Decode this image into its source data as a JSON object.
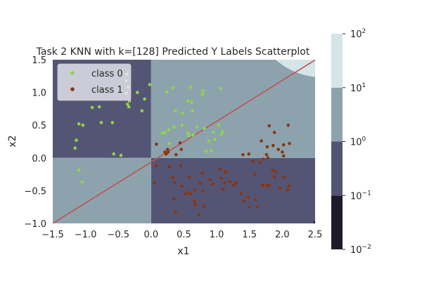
{
  "chart_data": {
    "type": "scatter",
    "title": "Task 2 KNN with k=[128] Predicted Y Labels Scatterplot",
    "xlabel": "x1",
    "ylabel": "x2",
    "xlim": [
      -1.5,
      2.5
    ],
    "ylim": [
      -1.0,
      1.5
    ],
    "xticks": [
      "−1.5",
      "−1.0",
      "−0.5",
      "0.0",
      "0.5",
      "1.0",
      "1.5",
      "2.0",
      "2.5"
    ],
    "xtick_values": [
      -1.5,
      -1.0,
      -0.5,
      0.0,
      0.5,
      1.0,
      1.5,
      2.0,
      2.5
    ],
    "yticks": [
      "−1.0",
      "−0.5",
      "0.0",
      "0.5",
      "1.0",
      "1.5"
    ],
    "ytick_values": [
      -1.0,
      -0.5,
      0.0,
      0.5,
      1.0,
      1.5
    ],
    "grid": false,
    "legend_position": "top-left",
    "background_regions": [
      {
        "x": [
          -1.5,
          0.0
        ],
        "y": [
          0.0,
          1.5
        ],
        "level": "1e-1 to 1e0",
        "color": "#545574"
      },
      {
        "x": [
          0.0,
          2.5
        ],
        "y": [
          -1.0,
          0.0
        ],
        "level": "1e-1 to 1e0",
        "color": "#545574"
      },
      {
        "x": [
          -1.5,
          0.0
        ],
        "y": [
          -1.0,
          0.0
        ],
        "level": "1e0 to 1e1",
        "color": "#8ca3ad"
      },
      {
        "x": [
          0.0,
          2.5
        ],
        "y": [
          0.0,
          1.5
        ],
        "level": "1e0 to 1e1",
        "color": "#8ca3ad"
      },
      {
        "corner": "top-right",
        "level": "1e1 to 1e2",
        "color": "#d3e5e6"
      },
      {
        "corner": "bottom-right",
        "level": "1e-2 to 1e-1",
        "color": "#1e1c2a"
      }
    ],
    "decision_line": {
      "x": [
        -1.5,
        2.5
      ],
      "y": [
        -1.0,
        1.495
      ],
      "color": "#c44e52"
    },
    "colorbar": {
      "scale": "log",
      "levels": [
        {
          "from": "1e-2",
          "to": "1e-1",
          "color": "#1e1c2a"
        },
        {
          "from": "1e-1",
          "to": "1e0",
          "color": "#545574"
        },
        {
          "from": "1e0",
          "to": "1e1",
          "color": "#8ca3ad"
        },
        {
          "from": "1e1",
          "to": "1e2",
          "color": "#d3e5e6"
        }
      ],
      "tick_bases": [
        "10",
        "10",
        "10",
        "10",
        "10"
      ],
      "tick_exponents": [
        "2",
        "1",
        "0",
        "−1",
        "−2"
      ]
    },
    "series": [
      {
        "name": "class 0",
        "color": "#8fd44a",
        "points": [
          [
            -0.37,
            1.28
          ],
          [
            -0.38,
            1.18
          ],
          [
            -0.35,
            1.08
          ],
          [
            -0.38,
            0.99
          ],
          [
            -0.33,
            0.87
          ],
          [
            -0.36,
            0.82
          ],
          [
            -0.34,
            0.78
          ],
          [
            -0.9,
            0.77
          ],
          [
            -0.79,
            0.78
          ],
          [
            -0.14,
            0.72
          ],
          [
            -0.1,
            0.9
          ],
          [
            -1.1,
            0.52
          ],
          [
            -1.04,
            0.5
          ],
          [
            -0.76,
            0.54
          ],
          [
            -0.59,
            0.54
          ],
          [
            -1.14,
            0.27
          ],
          [
            -1.16,
            0.15
          ],
          [
            -0.57,
            0.06
          ],
          [
            -0.46,
            0.04
          ],
          [
            -1.1,
            -0.18
          ],
          [
            -1.05,
            -0.37
          ],
          [
            -0.21,
            1.0
          ],
          [
            -0.02,
            1.12
          ],
          [
            0.24,
            1.01
          ],
          [
            0.33,
            1.07
          ],
          [
            0.6,
            1.08
          ],
          [
            0.78,
            0.97
          ],
          [
            0.79,
            1.02
          ],
          [
            1.06,
            1.06
          ],
          [
            0.56,
            0.87
          ],
          [
            0.62,
            0.85
          ],
          [
            0.37,
            0.72
          ],
          [
            0.48,
            0.68
          ],
          [
            0.63,
            0.72
          ],
          [
            0.7,
            0.47
          ],
          [
            0.81,
            0.45
          ],
          [
            0.95,
            0.39
          ],
          [
            1.03,
            0.5
          ],
          [
            1.07,
            0.36
          ],
          [
            0.88,
            0.26
          ],
          [
            0.97,
            0.28
          ],
          [
            0.84,
            0.1
          ],
          [
            0.58,
            0.34
          ],
          [
            0.56,
            0.38
          ],
          [
            0.27,
            0.43
          ],
          [
            0.21,
            0.39
          ],
          [
            0.28,
            0.22
          ],
          [
            0.17,
            0.38
          ],
          [
            0.47,
            0.5
          ],
          [
            0.35,
            0.47
          ],
          [
            1.09,
            0.4
          ],
          [
            0.92,
            0.11
          ],
          [
            0.64,
            0.35
          ]
        ]
      },
      {
        "name": "class 1",
        "color": "#8b3510",
        "points": [
          [
            0.08,
            0.21
          ],
          [
            0.25,
            0.13
          ],
          [
            0.38,
            0.05
          ],
          [
            0.46,
            0.13
          ],
          [
            0.44,
            0.23
          ],
          [
            0.21,
            0.09
          ],
          [
            0.23,
            0.06
          ],
          [
            0.26,
            0.09
          ],
          [
            0.08,
            -0.12
          ],
          [
            0.05,
            -0.38
          ],
          [
            0.36,
            -0.38
          ],
          [
            0.47,
            -0.43
          ],
          [
            0.52,
            -0.55
          ],
          [
            0.55,
            -0.53
          ],
          [
            0.35,
            -0.62
          ],
          [
            0.37,
            -0.82
          ],
          [
            0.67,
            -0.71
          ],
          [
            0.73,
            -0.87
          ],
          [
            0.66,
            -0.66
          ],
          [
            0.67,
            -0.49
          ],
          [
            0.75,
            -0.39
          ],
          [
            0.8,
            -0.74
          ],
          [
            0.79,
            -0.51
          ],
          [
            0.94,
            -0.4
          ],
          [
            1.07,
            -0.31
          ],
          [
            1.1,
            -0.48
          ],
          [
            1.12,
            -0.38
          ],
          [
            1.13,
            -0.21
          ],
          [
            1.2,
            -0.36
          ],
          [
            1.26,
            -0.42
          ],
          [
            1.29,
            -0.38
          ],
          [
            1.37,
            -0.54
          ],
          [
            1.41,
            -0.66
          ],
          [
            1.48,
            -0.6
          ],
          [
            1.59,
            -0.64
          ],
          [
            1.62,
            -0.75
          ],
          [
            1.5,
            -0.75
          ],
          [
            1.55,
            -0.05
          ],
          [
            1.58,
            -0.25
          ],
          [
            1.66,
            -0.07
          ],
          [
            1.7,
            -0.42
          ],
          [
            1.76,
            -0.42
          ],
          [
            1.8,
            -0.42
          ],
          [
            1.88,
            -0.29
          ],
          [
            1.85,
            -0.19
          ],
          [
            1.9,
            -0.21
          ],
          [
            1.97,
            -0.46
          ],
          [
            2.03,
            -0.3
          ],
          [
            2.1,
            -0.43
          ],
          [
            2.08,
            -0.49
          ],
          [
            1.77,
            0.17
          ],
          [
            1.86,
            0.19
          ],
          [
            1.94,
            0.13
          ],
          [
            1.76,
            0.05
          ],
          [
            1.78,
            0.0
          ],
          [
            1.71,
            -0.02
          ],
          [
            2.0,
            0.09
          ],
          [
            2.02,
            0.2
          ],
          [
            2.02,
            0.03
          ],
          [
            2.11,
            0.22
          ],
          [
            2.09,
            0.5
          ],
          [
            1.8,
            0.49
          ],
          [
            1.88,
            0.39
          ],
          [
            1.68,
            0.26
          ],
          [
            1.4,
            0.05
          ],
          [
            1.49,
            0.06
          ],
          [
            1.05,
            -0.17
          ],
          [
            1.14,
            -0.22
          ],
          [
            0.9,
            -0.33
          ],
          [
            0.6,
            -0.55
          ],
          [
            0.58,
            -0.3
          ],
          [
            0.45,
            -0.12
          ],
          [
            0.78,
            -0.23
          ],
          [
            0.28,
            -0.13
          ],
          [
            0.33,
            -0.3
          ]
        ]
      }
    ]
  }
}
